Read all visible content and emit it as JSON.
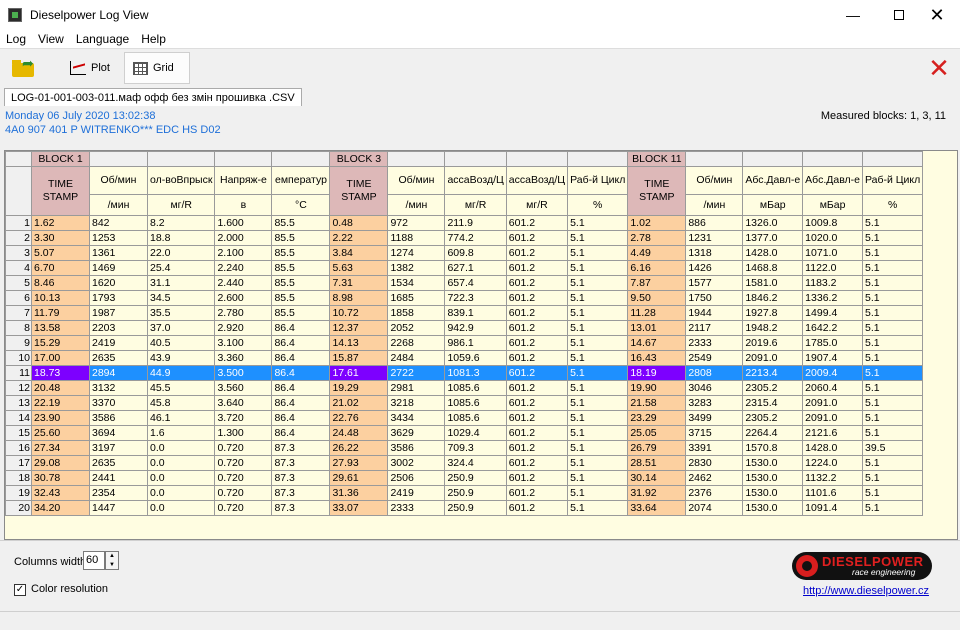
{
  "window": {
    "title": "Dieselpower Log View"
  },
  "menu": [
    "Log",
    "View",
    "Language",
    "Help"
  ],
  "toolbar": {
    "plot_label": "Plot",
    "grid_label": "Grid"
  },
  "file_tab": "LOG-01-001-003-011.маф офф  без змін прошивка .CSV",
  "info": {
    "date": "Monday 06 July 2020 13:02:38",
    "ecu": "4A0 907 401 P  WITRENKO***  EDC  HS D02",
    "measured": "Measured blocks: 1, 3, 11"
  },
  "grid": {
    "block_labels": [
      "BLOCK 1",
      "BLOCK 3",
      "BLOCK 11"
    ],
    "timestamp_label": "TIME STAMP",
    "columns": [
      [
        "TIME STAMP",
        ""
      ],
      [
        "Об/мин",
        "/мин"
      ],
      [
        "ол-воВпрыск",
        "мг/R"
      ],
      [
        "Напряж-е",
        "в"
      ],
      [
        "емператур",
        "°C"
      ],
      [
        "TIME STAMP",
        ""
      ],
      [
        "Об/мин",
        "/мин"
      ],
      [
        "ассаВозд/Ц",
        "мг/R"
      ],
      [
        "ассаВозд/Ц",
        "мг/R"
      ],
      [
        "Раб-й Цикл",
        "%"
      ],
      [
        "TIME STAMP",
        ""
      ],
      [
        "Об/мин",
        "/мин"
      ],
      [
        "Абс.Давл-е",
        "мБар"
      ],
      [
        "Абс.Давл-е",
        "мБар"
      ],
      [
        "Раб-й Цикл",
        "%"
      ]
    ],
    "selected_row": 11,
    "rows": [
      [
        "1.62",
        "842",
        "8.2",
        "1.600",
        "85.5",
        "0.48",
        "972",
        "211.9",
        "601.2",
        "5.1",
        "1.02",
        "886",
        "1326.0",
        "1009.8",
        "5.1"
      ],
      [
        "3.30",
        "1253",
        "18.8",
        "2.000",
        "85.5",
        "2.22",
        "1188",
        "774.2",
        "601.2",
        "5.1",
        "2.78",
        "1231",
        "1377.0",
        "1020.0",
        "5.1"
      ],
      [
        "5.07",
        "1361",
        "22.0",
        "2.100",
        "85.5",
        "3.84",
        "1274",
        "609.8",
        "601.2",
        "5.1",
        "4.49",
        "1318",
        "1428.0",
        "1071.0",
        "5.1"
      ],
      [
        "6.70",
        "1469",
        "25.4",
        "2.240",
        "85.5",
        "5.63",
        "1382",
        "627.1",
        "601.2",
        "5.1",
        "6.16",
        "1426",
        "1468.8",
        "1122.0",
        "5.1"
      ],
      [
        "8.46",
        "1620",
        "31.1",
        "2.440",
        "85.5",
        "7.31",
        "1534",
        "657.4",
        "601.2",
        "5.1",
        "7.87",
        "1577",
        "1581.0",
        "1183.2",
        "5.1"
      ],
      [
        "10.13",
        "1793",
        "34.5",
        "2.600",
        "85.5",
        "8.98",
        "1685",
        "722.3",
        "601.2",
        "5.1",
        "9.50",
        "1750",
        "1846.2",
        "1336.2",
        "5.1"
      ],
      [
        "11.79",
        "1987",
        "35.5",
        "2.780",
        "85.5",
        "10.72",
        "1858",
        "839.1",
        "601.2",
        "5.1",
        "11.28",
        "1944",
        "1927.8",
        "1499.4",
        "5.1"
      ],
      [
        "13.58",
        "2203",
        "37.0",
        "2.920",
        "86.4",
        "12.37",
        "2052",
        "942.9",
        "601.2",
        "5.1",
        "13.01",
        "2117",
        "1948.2",
        "1642.2",
        "5.1"
      ],
      [
        "15.29",
        "2419",
        "40.5",
        "3.100",
        "86.4",
        "14.13",
        "2268",
        "986.1",
        "601.2",
        "5.1",
        "14.67",
        "2333",
        "2019.6",
        "1785.0",
        "5.1"
      ],
      [
        "17.00",
        "2635",
        "43.9",
        "3.360",
        "86.4",
        "15.87",
        "2484",
        "1059.6",
        "601.2",
        "5.1",
        "16.43",
        "2549",
        "2091.0",
        "1907.4",
        "5.1"
      ],
      [
        "18.73",
        "2894",
        "44.9",
        "3.500",
        "86.4",
        "17.61",
        "2722",
        "1081.3",
        "601.2",
        "5.1",
        "18.19",
        "2808",
        "2213.4",
        "2009.4",
        "5.1"
      ],
      [
        "20.48",
        "3132",
        "45.5",
        "3.560",
        "86.4",
        "19.29",
        "2981",
        "1085.6",
        "601.2",
        "5.1",
        "19.90",
        "3046",
        "2305.2",
        "2060.4",
        "5.1"
      ],
      [
        "22.19",
        "3370",
        "45.8",
        "3.640",
        "86.4",
        "21.02",
        "3218",
        "1085.6",
        "601.2",
        "5.1",
        "21.58",
        "3283",
        "2315.4",
        "2091.0",
        "5.1"
      ],
      [
        "23.90",
        "3586",
        "46.1",
        "3.720",
        "86.4",
        "22.76",
        "3434",
        "1085.6",
        "601.2",
        "5.1",
        "23.29",
        "3499",
        "2305.2",
        "2091.0",
        "5.1"
      ],
      [
        "25.60",
        "3694",
        "1.6",
        "1.300",
        "86.4",
        "24.48",
        "3629",
        "1029.4",
        "601.2",
        "5.1",
        "25.05",
        "3715",
        "2264.4",
        "2121.6",
        "5.1"
      ],
      [
        "27.34",
        "3197",
        "0.0",
        "0.720",
        "87.3",
        "26.22",
        "3586",
        "709.3",
        "601.2",
        "5.1",
        "26.79",
        "3391",
        "1570.8",
        "1428.0",
        "39.5"
      ],
      [
        "29.08",
        "2635",
        "0.0",
        "0.720",
        "87.3",
        "27.93",
        "3002",
        "324.4",
        "601.2",
        "5.1",
        "28.51",
        "2830",
        "1530.0",
        "1224.0",
        "5.1"
      ],
      [
        "30.78",
        "2441",
        "0.0",
        "0.720",
        "87.3",
        "29.61",
        "2506",
        "250.9",
        "601.2",
        "5.1",
        "30.14",
        "2462",
        "1530.0",
        "1132.2",
        "5.1"
      ],
      [
        "32.43",
        "2354",
        "0.0",
        "0.720",
        "87.3",
        "31.36",
        "2419",
        "250.9",
        "601.2",
        "5.1",
        "31.92",
        "2376",
        "1530.0",
        "1101.6",
        "5.1"
      ],
      [
        "34.20",
        "1447",
        "0.0",
        "0.720",
        "87.3",
        "33.07",
        "2333",
        "250.9",
        "601.2",
        "5.1",
        "33.64",
        "2074",
        "1530.0",
        "1091.4",
        "5.1"
      ]
    ]
  },
  "bottom": {
    "columns_width_label": "Columns width:",
    "columns_width_value": "60",
    "color_resolution_label": "Color resolution",
    "color_resolution_checked": true,
    "logo_main": "DIESELPOWER",
    "logo_sub": "race engineering",
    "site": "http://www.dieselpower.cz"
  }
}
